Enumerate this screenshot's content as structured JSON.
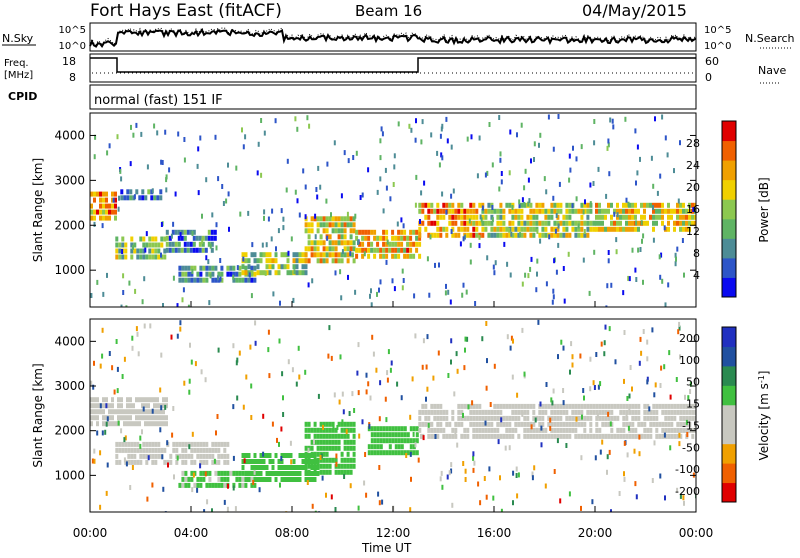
{
  "header": {
    "station": "Fort Hays East (fitACF)",
    "beam": "Beam 16",
    "date": "04/May/2015"
  },
  "top_panel": {
    "left_label": "N.Sky",
    "right_label": "N.Search",
    "left_ticks": [
      "10^5",
      "10^0"
    ],
    "right_ticks": [
      "10^5",
      "10^0"
    ]
  },
  "freq_panel": {
    "left_label_line1": "Freq.",
    "left_label_line2": "[MHz]",
    "right_label": "Nave",
    "left_ticks": [
      "18",
      "8"
    ],
    "right_ticks": [
      "60",
      "0"
    ]
  },
  "cpid_panel": {
    "label": "CPID",
    "value": "normal (fast) 151 IF"
  },
  "colors": {
    "scale": [
      "#0a0af0",
      "#2d55c8",
      "#4d8c96",
      "#5fb464",
      "#8cc850",
      "#f0d000",
      "#f0a000",
      "#f06000",
      "#e00000"
    ],
    "velocity_scale": [
      "#e00000",
      "#f06000",
      "#f0a000",
      "#c8c8c0",
      "#c8c8c0",
      "#40c040",
      "#2a8a50",
      "#2050a0",
      "#2030c0"
    ]
  },
  "chart_data": [
    {
      "type": "heatmap",
      "name": "power",
      "xlabel": "Time UT",
      "ylabel": "Slant Range [km]",
      "x_ticks": [
        "00:00",
        "04:00",
        "08:00",
        "12:00",
        "16:00",
        "20:00",
        "00:00"
      ],
      "y_ticks": [
        "1000",
        "2000",
        "3000",
        "4000"
      ],
      "xlim": [
        0,
        24
      ],
      "ylim": [
        180,
        4500
      ],
      "colorbar_label": "Power [dB]",
      "colorbar_ticks": [
        "28",
        "24",
        "20",
        "16",
        "12",
        "8",
        "4"
      ],
      "colorbar_range": [
        0,
        30
      ],
      "bands": [
        {
          "t0": 0.0,
          "t1": 1.0,
          "r_lo": 2200,
          "r_hi": 2750,
          "value": 22
        },
        {
          "t0": 1.0,
          "t1": 3.0,
          "r_lo": 1250,
          "r_hi": 1750,
          "value": 14
        },
        {
          "t0": 1.2,
          "t1": 2.8,
          "r_lo": 2600,
          "r_hi": 2800,
          "value": 8
        },
        {
          "t0": 3.0,
          "t1": 5.0,
          "r_lo": 1400,
          "r_hi": 1900,
          "value": 8
        },
        {
          "t0": 3.5,
          "t1": 6.5,
          "r_lo": 700,
          "r_hi": 1100,
          "value": 10
        },
        {
          "t0": 6.0,
          "t1": 8.5,
          "r_lo": 900,
          "r_hi": 1400,
          "value": 14
        },
        {
          "t0": 8.5,
          "t1": 10.5,
          "r_lo": 1200,
          "r_hi": 2200,
          "value": 18
        },
        {
          "t0": 10.5,
          "t1": 13.0,
          "r_lo": 1300,
          "r_hi": 1900,
          "value": 20
        },
        {
          "t0": 13.0,
          "t1": 15.5,
          "r_lo": 1700,
          "r_hi": 2500,
          "value": 22
        },
        {
          "t0": 15.5,
          "t1": 20.0,
          "r_lo": 1800,
          "r_hi": 2500,
          "value": 16
        },
        {
          "t0": 20.0,
          "t1": 24.0,
          "r_lo": 1900,
          "r_hi": 2500,
          "value": 18
        }
      ]
    },
    {
      "type": "heatmap",
      "name": "velocity",
      "xlabel": "Time UT",
      "ylabel": "Slant Range [km]",
      "x_ticks": [
        "00:00",
        "04:00",
        "08:00",
        "12:00",
        "16:00",
        "20:00",
        "00:00"
      ],
      "y_ticks": [
        "1000",
        "2000",
        "3000",
        "4000"
      ],
      "xlim": [
        0,
        24
      ],
      "ylim": [
        180,
        4500
      ],
      "colorbar_label": "Velocity [m s",
      "colorbar_unit_sup": "-1",
      "colorbar_unit_close": "]",
      "colorbar_ticks": [
        "200",
        "100",
        "50",
        "15",
        "-15",
        "-50",
        "-100",
        "-200"
      ],
      "colorbar_range": [
        -250,
        250
      ],
      "bands": [
        {
          "t0": 0.0,
          "t1": 3.0,
          "r_lo": 2200,
          "r_hi": 2750,
          "value": -20
        },
        {
          "t0": 1.0,
          "t1": 5.5,
          "r_lo": 1250,
          "r_hi": 1750,
          "value": 0
        },
        {
          "t0": 3.5,
          "t1": 6.5,
          "r_lo": 700,
          "r_hi": 1100,
          "value": 40
        },
        {
          "t0": 6.0,
          "t1": 9.0,
          "r_lo": 900,
          "r_hi": 1500,
          "value": 60
        },
        {
          "t0": 8.5,
          "t1": 10.5,
          "r_lo": 1000,
          "r_hi": 2200,
          "value": 60
        },
        {
          "t0": 11.0,
          "t1": 13.0,
          "r_lo": 1500,
          "r_hi": 2100,
          "value": 50
        },
        {
          "t0": 13.0,
          "t1": 24.0,
          "r_lo": 1800,
          "r_hi": 2600,
          "value": 0
        }
      ]
    }
  ]
}
